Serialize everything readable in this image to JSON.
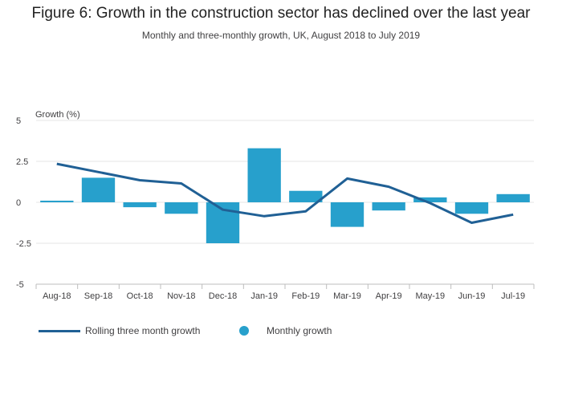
{
  "title": "Figure 6: Growth in the construction sector has declined over the last year",
  "subtitle": "Monthly and three-monthly growth, UK, August 2018 to July 2019",
  "colors": {
    "bar": "#27a0cc",
    "line": "#206095",
    "grid": "#e6e6e6",
    "axis": "#bdbdbd"
  },
  "chart_data": {
    "type": "bar",
    "categories": [
      "Aug-18",
      "Sep-18",
      "Oct-18",
      "Nov-18",
      "Dec-18",
      "Jan-19",
      "Feb-19",
      "Mar-19",
      "Apr-19",
      "May-19",
      "Jun-19",
      "Jul-19"
    ],
    "ylabel": "Growth (%)",
    "ylim": [
      -5,
      5
    ],
    "yticks": [
      5,
      2.5,
      0,
      -2.5,
      -5
    ],
    "ytick_labels": [
      "5",
      "2.5",
      "0",
      "-2.5",
      "-5"
    ],
    "grid": true,
    "legend_position": "bottom-left",
    "series": [
      {
        "name": "Monthly growth",
        "kind": "bar",
        "values": [
          0.1,
          1.5,
          -0.3,
          -0.7,
          -2.5,
          3.3,
          0.7,
          -1.5,
          -0.5,
          0.3,
          -0.7,
          0.5
        ]
      },
      {
        "name": "Rolling three month growth",
        "kind": "line",
        "values": [
          2.35,
          1.85,
          1.35,
          1.15,
          -0.45,
          -0.85,
          -0.55,
          1.45,
          0.95,
          -0.05,
          -1.25,
          -0.75
        ]
      }
    ]
  }
}
